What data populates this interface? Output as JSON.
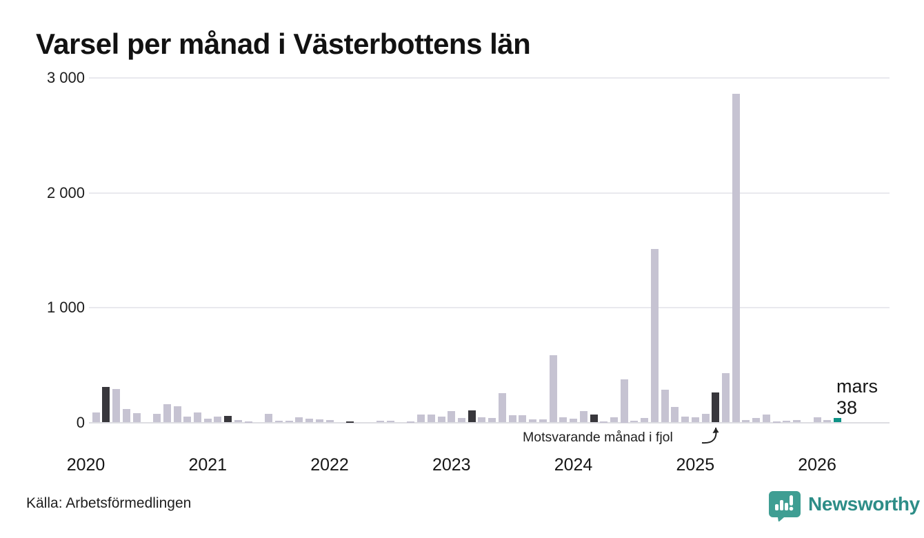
{
  "title": "Varsel per månad i Västerbottens län",
  "source": "Källa: Arbetsförmedlingen",
  "brand": {
    "name": "Newsworthy"
  },
  "annotation": {
    "text": "Motsvarande månad i fjol"
  },
  "latest_label": {
    "month": "mars",
    "value": "38"
  },
  "colors": {
    "bar": "#c6c3d2",
    "compare_bar": "#38373c",
    "latest_bar": "#0e9286",
    "grid": "#e9e9ee",
    "zero_line": "#dddde2",
    "brand_icon": "#3f9e93",
    "brand_text": "#2d8d87"
  },
  "chart_data": {
    "type": "bar",
    "title": "Varsel per månad i Västerbottens län",
    "xlabel": "",
    "ylabel": "",
    "ylim": [
      0,
      3000
    ],
    "y_tick_values": [
      3000,
      2000,
      1000,
      0
    ],
    "y_tick_labels": [
      "3 000",
      "2 000",
      "1 000",
      "0"
    ],
    "x_tick_labels": [
      "2020",
      "2021",
      "2022",
      "2023",
      "2024",
      "2025",
      "2026"
    ],
    "period_start": "2020 januari",
    "period_end": "2026 mars",
    "grid": "horizontal-only",
    "legend": "none",
    "series": [
      {
        "name": "Varsel per månad",
        "values_by_year": {
          "2020": [
            0,
            90,
            310,
            290,
            115,
            80,
            0,
            78,
            160,
            140,
            54,
            90
          ],
          "2021": [
            36,
            54,
            60,
            24,
            10,
            0,
            78,
            18,
            15,
            45,
            36,
            25
          ],
          "2022": [
            20,
            0,
            12,
            0,
            0,
            18,
            18,
            0,
            10,
            72,
            68,
            54
          ],
          "2023": [
            98,
            40,
            106,
            44,
            40,
            258,
            66,
            66,
            30,
            26,
            585,
            44
          ],
          "2024": [
            34,
            102,
            68,
            12,
            48,
            375,
            18,
            40,
            1510,
            284,
            134,
            54
          ],
          "2025": [
            44,
            74,
            260,
            430,
            2860,
            20,
            38,
            70,
            10,
            18,
            20,
            0
          ],
          "2026": [
            45,
            24,
            38
          ]
        },
        "values": [
          0,
          90,
          310,
          290,
          115,
          80,
          0,
          78,
          160,
          140,
          54,
          90,
          36,
          54,
          60,
          24,
          10,
          0,
          78,
          18,
          15,
          45,
          36,
          25,
          20,
          0,
          12,
          0,
          0,
          18,
          18,
          0,
          10,
          72,
          68,
          54,
          98,
          40,
          106,
          44,
          40,
          258,
          66,
          66,
          30,
          26,
          585,
          44,
          34,
          102,
          68,
          12,
          48,
          375,
          18,
          40,
          1510,
          284,
          134,
          54,
          44,
          74,
          260,
          430,
          2860,
          20,
          38,
          70,
          10,
          18,
          20,
          0,
          45,
          24,
          38
        ]
      }
    ],
    "highlight_dark_indices": [
      2,
      14,
      26,
      38,
      50,
      62
    ],
    "highlight_dark_meaning": "mars (samma månad som senaste) varje år; 62 = Motsvarande månad i fjol",
    "highlight_latest_index": 74,
    "latest_point": {
      "label": "mars",
      "value": 38
    }
  }
}
